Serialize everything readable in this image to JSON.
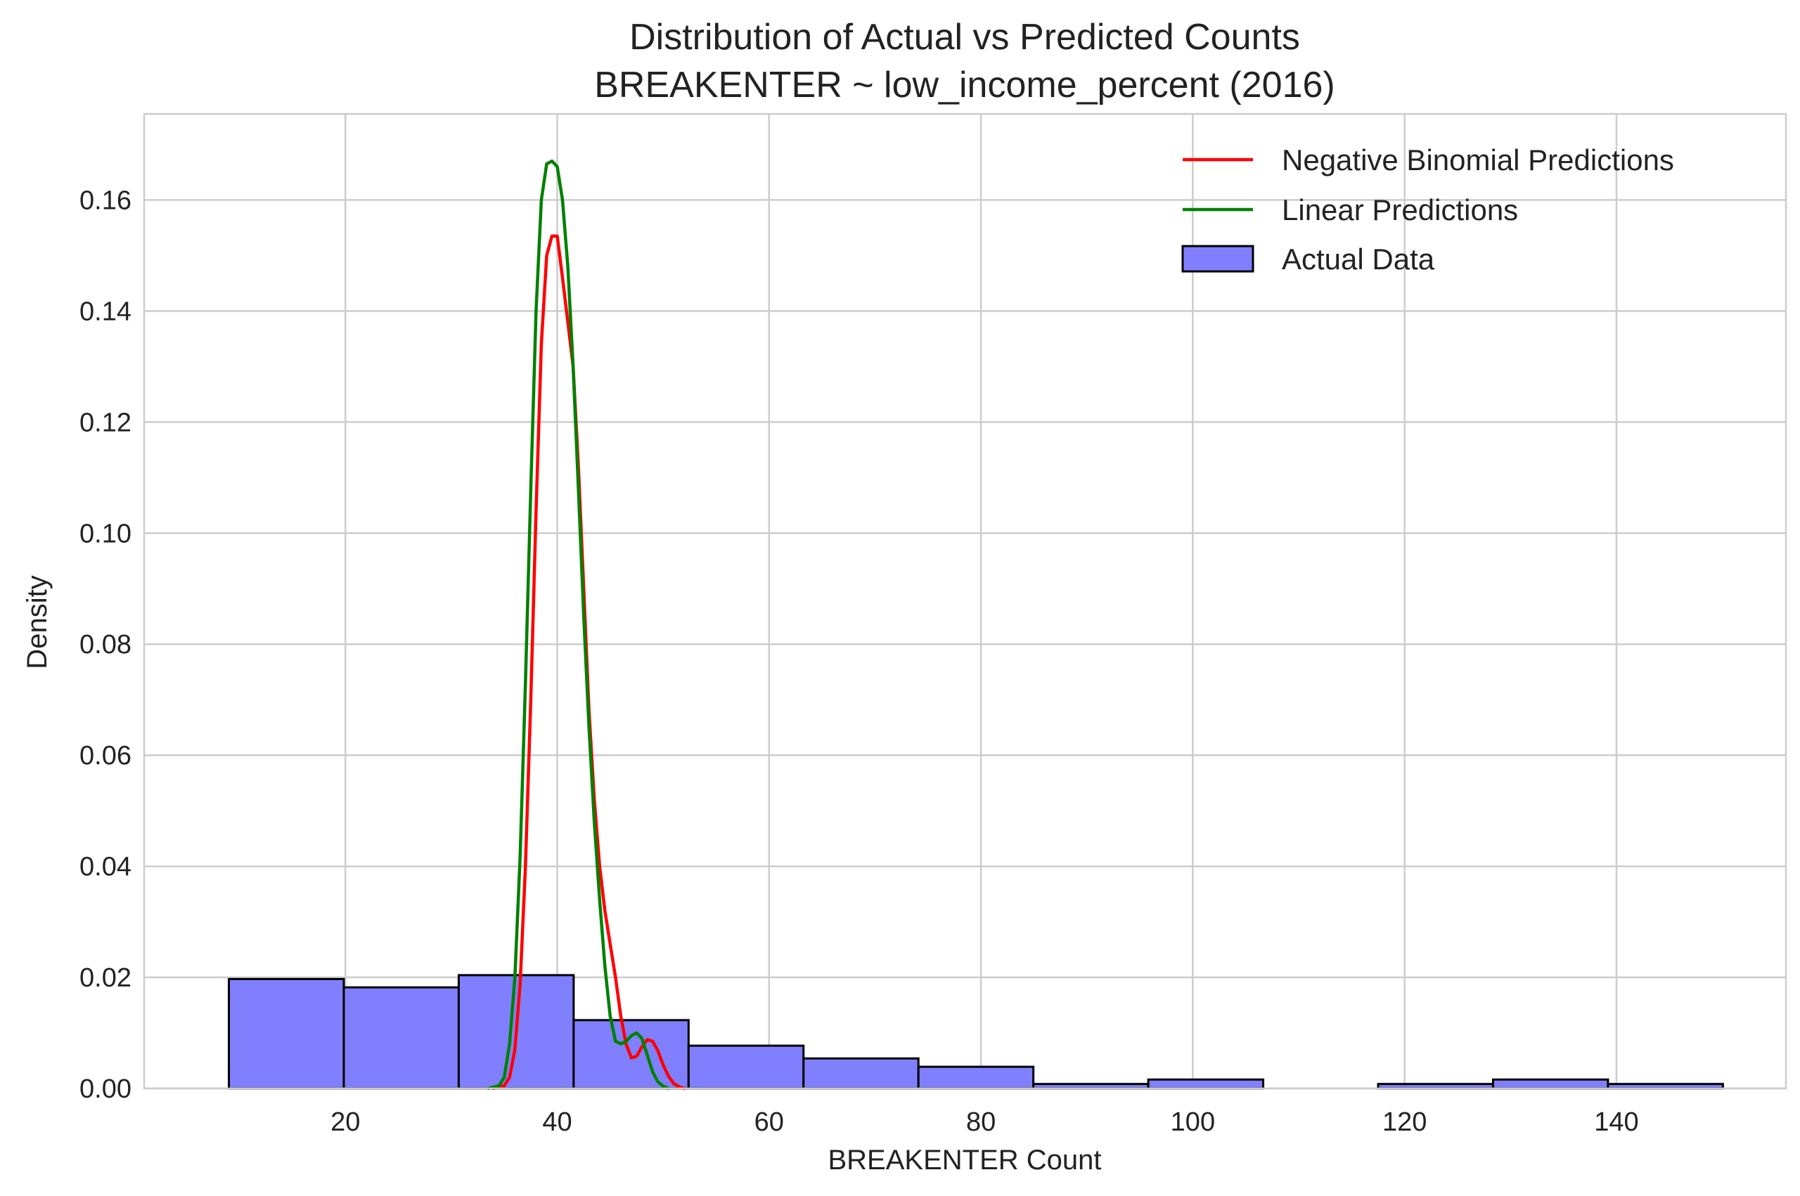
{
  "chart_data": {
    "type": "bar",
    "title": "Distribution of Actual vs Predicted Counts",
    "subtitle": "BREAKENTER ~ low_income_percent (2016)",
    "xlabel": "BREAKENTER Count",
    "ylabel": "Density",
    "xlim": [
      1,
      156
    ],
    "ylim": [
      0,
      0.1755
    ],
    "x_ticks": [
      20,
      40,
      60,
      80,
      100,
      120,
      140
    ],
    "y_ticks": [
      0.0,
      0.02,
      0.04,
      0.06,
      0.08,
      0.1,
      0.12,
      0.14,
      0.16
    ],
    "x_tick_labels": [
      "20",
      "40",
      "60",
      "80",
      "100",
      "120",
      "140"
    ],
    "y_tick_labels": [
      "0.00",
      "0.02",
      "0.04",
      "0.06",
      "0.08",
      "0.10",
      "0.12",
      "0.14",
      "0.16"
    ],
    "grid": true,
    "legend_position": "top-right",
    "histogram": {
      "name": "Actual Data",
      "color": "#8080ff",
      "edge_color": "#000000",
      "bins": [
        {
          "x0": 9.0,
          "x1": 19.85,
          "density": 0.0197
        },
        {
          "x0": 19.85,
          "x1": 30.7,
          "density": 0.0182
        },
        {
          "x0": 30.7,
          "x1": 41.55,
          "density": 0.0204
        },
        {
          "x0": 41.55,
          "x1": 52.4,
          "density": 0.0123
        },
        {
          "x0": 52.4,
          "x1": 63.25,
          "density": 0.0077
        },
        {
          "x0": 63.25,
          "x1": 74.1,
          "density": 0.0054
        },
        {
          "x0": 74.1,
          "x1": 84.95,
          "density": 0.0039
        },
        {
          "x0": 84.95,
          "x1": 95.8,
          "density": 0.0008
        },
        {
          "x0": 95.8,
          "x1": 106.65,
          "density": 0.0016
        },
        {
          "x0": 106.65,
          "x1": 117.5,
          "density": 0.0
        },
        {
          "x0": 117.5,
          "x1": 128.35,
          "density": 0.0008
        },
        {
          "x0": 128.35,
          "x1": 139.2,
          "density": 0.0016
        },
        {
          "x0": 139.2,
          "x1": 150.05,
          "density": 0.0008
        }
      ]
    },
    "series": [
      {
        "name": "Negative Binomial Predictions",
        "color": "#ff0000",
        "x": [
          34.0,
          35.0,
          35.5,
          36.0,
          36.5,
          37.0,
          37.5,
          38.0,
          38.5,
          39.0,
          39.5,
          40.0,
          40.5,
          41.0,
          41.5,
          42.0,
          42.5,
          43.0,
          43.5,
          44.0,
          44.5,
          45.0,
          45.5,
          46.0,
          46.5,
          47.0,
          47.5,
          48.0,
          48.5,
          49.0,
          49.5,
          50.0,
          50.5,
          51.0,
          51.5,
          52.0
        ],
        "y": [
          0.0,
          0.0005,
          0.002,
          0.007,
          0.019,
          0.04,
          0.07,
          0.104,
          0.134,
          0.15,
          0.1535,
          0.1535,
          0.146,
          0.138,
          0.13,
          0.112,
          0.09,
          0.068,
          0.052,
          0.04,
          0.032,
          0.026,
          0.02,
          0.013,
          0.008,
          0.0055,
          0.0058,
          0.0075,
          0.0088,
          0.0085,
          0.0068,
          0.0042,
          0.0022,
          0.0009,
          0.0003,
          0.0
        ]
      },
      {
        "name": "Linear Predictions",
        "color": "#008000",
        "x": [
          33.5,
          34.5,
          35.0,
          35.5,
          36.0,
          36.5,
          37.0,
          37.5,
          38.0,
          38.5,
          39.0,
          39.5,
          40.0,
          40.5,
          41.0,
          41.5,
          42.0,
          42.5,
          43.0,
          43.5,
          44.0,
          44.5,
          45.0,
          45.5,
          46.0,
          46.5,
          47.0,
          47.5,
          48.0,
          48.5,
          49.0,
          49.5,
          50.0,
          50.5
        ],
        "y": [
          0.0,
          0.0005,
          0.002,
          0.008,
          0.02,
          0.042,
          0.073,
          0.108,
          0.14,
          0.16,
          0.1665,
          0.167,
          0.166,
          0.16,
          0.148,
          0.13,
          0.108,
          0.085,
          0.065,
          0.048,
          0.034,
          0.022,
          0.013,
          0.0085,
          0.008,
          0.0085,
          0.0095,
          0.01,
          0.009,
          0.006,
          0.003,
          0.0012,
          0.0004,
          0.0
        ]
      }
    ]
  }
}
